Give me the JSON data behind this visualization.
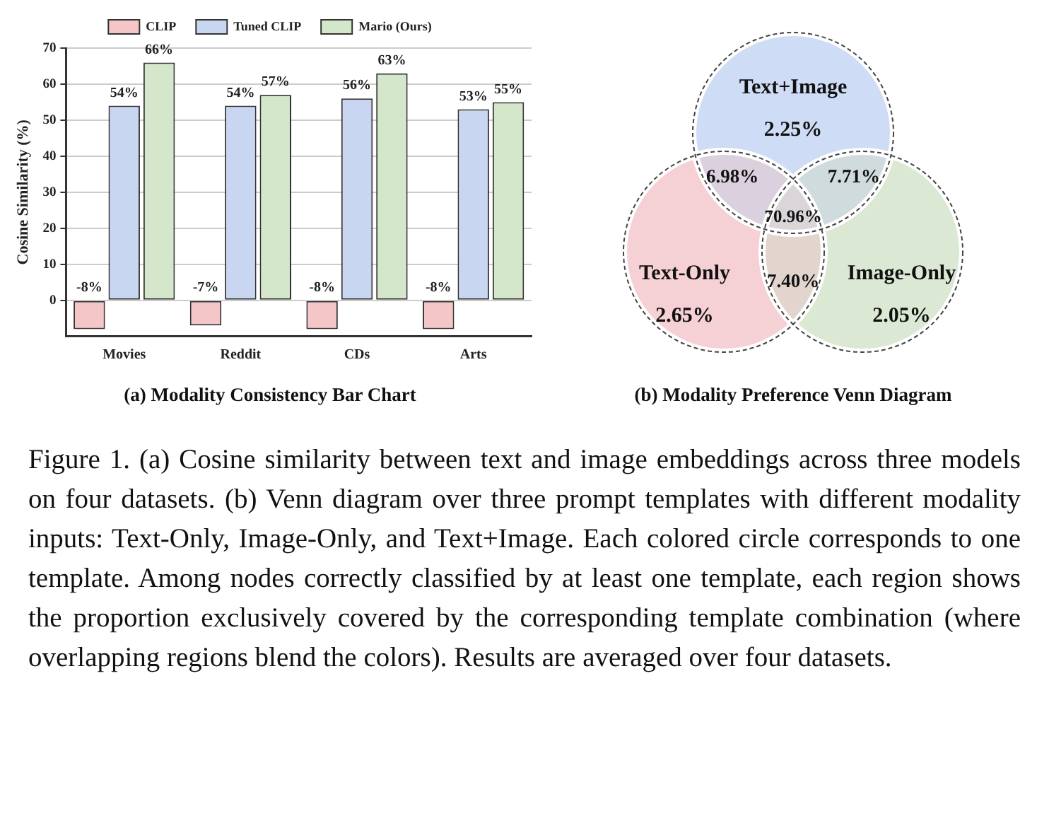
{
  "chart_data": [
    {
      "type": "bar",
      "title": "(a) Modality Consistency Bar Chart",
      "ylabel": "Cosine Similarity (%)",
      "categories": [
        "Movies",
        "Reddit",
        "CDs",
        "Arts"
      ],
      "series": [
        {
          "name": "CLIP",
          "color": "#f4c6c8",
          "values": [
            -8,
            -7,
            -8,
            -8
          ],
          "value_labels": [
            "-8%",
            "-7%",
            "-8%",
            "-8%"
          ]
        },
        {
          "name": "Tuned CLIP",
          "color": "#c8d6f2",
          "values": [
            54,
            54,
            56,
            53
          ],
          "value_labels": [
            "54%",
            "54%",
            "56%",
            "53%"
          ]
        },
        {
          "name": "Mario (Ours)",
          "color": "#d4e7cb",
          "values": [
            66,
            57,
            63,
            55
          ],
          "value_labels": [
            "66%",
            "57%",
            "63%",
            "55%"
          ]
        }
      ],
      "ylim": [
        -10,
        70
      ],
      "yticks": [
        0,
        10,
        20,
        30,
        40,
        50,
        60,
        70
      ],
      "grid": "y",
      "legend": "top"
    },
    {
      "type": "other",
      "title": "(b) Modality Preference Venn Diagram",
      "categories": [
        "Text+Image",
        "Text-Only",
        "Image-Only"
      ],
      "values": [
        2.25,
        2.65,
        2.05
      ],
      "value_labels": [
        "2.25%",
        "2.65%",
        "2.05%"
      ],
      "colors": [
        "#cfdcf5",
        "#f5d0d5",
        "#dbe8d3"
      ],
      "annotations": [
        "6.98%",
        "7.71%",
        "7.40%",
        "70.96%",
        "Figure 1. (a) Cosine similarity between text and image embeddings across three models on four datasets. (b) Venn diagram over three prompt templates with different modality inputs: Text-Only, Image-Only, and Text+Image. Each colored circle corresponds to one template. Among nodes correctly classified by at least one template, each region shows the proportion exclusively covered by the corresponding template combination (where overlapping regions blend the colors). Results are averaged over four datasets."
      ]
    }
  ]
}
